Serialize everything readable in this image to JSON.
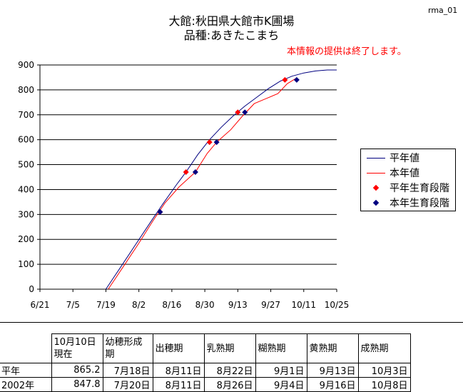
{
  "header": {
    "code": "rma_01",
    "title_line1": "大館:秋田県大館市K圃場",
    "title_line2": "品種:あきたこまち",
    "notice": "本情報の提供は終了します。"
  },
  "colors": {
    "normal_year": "#000080",
    "this_year": "#ff0000"
  },
  "chart_data": {
    "type": "line",
    "title": "大館:秋田県大館市K圃場 品種:あきたこまち",
    "xlabel": "",
    "ylabel": "",
    "ylim": [
      0,
      900
    ],
    "yticks": [
      0,
      100,
      200,
      300,
      400,
      500,
      600,
      700,
      800,
      900
    ],
    "xlim": [
      "6/21",
      "10/25"
    ],
    "xticks": [
      "6/21",
      "7/5",
      "7/19",
      "8/2",
      "8/16",
      "8/30",
      "9/13",
      "9/27",
      "10/11",
      "10/25"
    ],
    "grid": "horizontal",
    "legend_position": "right",
    "series": [
      {
        "name": "平年値",
        "kind": "line",
        "color": "#000080",
        "x": [
          "7/19",
          "7/25",
          "8/1",
          "8/7",
          "8/12",
          "8/18",
          "8/22",
          "8/27",
          "9/1",
          "9/6",
          "9/11",
          "9/16",
          "9/21",
          "9/26",
          "10/1",
          "10/6",
          "10/11",
          "10/16",
          "10/21",
          "10/25"
        ],
        "y": [
          0,
          85,
          185,
          270,
          340,
          420,
          470,
          540,
          600,
          650,
          695,
          735,
          770,
          805,
          835,
          855,
          868,
          876,
          880,
          880
        ]
      },
      {
        "name": "本年値",
        "kind": "line",
        "color": "#ff0000",
        "x": [
          "7/20",
          "7/26",
          "8/2",
          "8/8",
          "8/13",
          "8/19",
          "8/26",
          "8/31",
          "9/4",
          "9/10",
          "9/15",
          "9/20",
          "9/25",
          "9/30",
          "10/4",
          "10/8"
        ],
        "y": [
          0,
          85,
          185,
          275,
          345,
          410,
          470,
          545,
          590,
          640,
          695,
          745,
          765,
          785,
          825,
          847.8
        ]
      },
      {
        "name": "平年生育段階",
        "kind": "marker",
        "color": "#ff0000",
        "x": [
          "8/11",
          "8/22",
          "9/1",
          "9/13",
          "10/3"
        ],
        "y": [
          310,
          470,
          590,
          710,
          840
        ]
      },
      {
        "name": "本年生育段階",
        "kind": "marker",
        "color": "#000080",
        "x": [
          "8/11",
          "8/26",
          "9/4",
          "9/16",
          "10/8"
        ],
        "y": [
          310,
          470,
          590,
          710,
          840
        ]
      }
    ]
  },
  "table": {
    "headers": [
      "10月10日現在",
      "幼穂形成期",
      "出穂期",
      "乳熟期",
      "糊熟期",
      "黄熟期",
      "成熟期"
    ],
    "rows": [
      {
        "label": "平年",
        "cells": [
          "865.2",
          "7月18日",
          "8月11日",
          "8月22日",
          "9月1日",
          "9月13日",
          "10月3日"
        ]
      },
      {
        "label": "2002年",
        "cells": [
          "847.8",
          "7月20日",
          "8月11日",
          "8月26日",
          "9月4日",
          "9月16日",
          "10月8日"
        ]
      }
    ]
  }
}
